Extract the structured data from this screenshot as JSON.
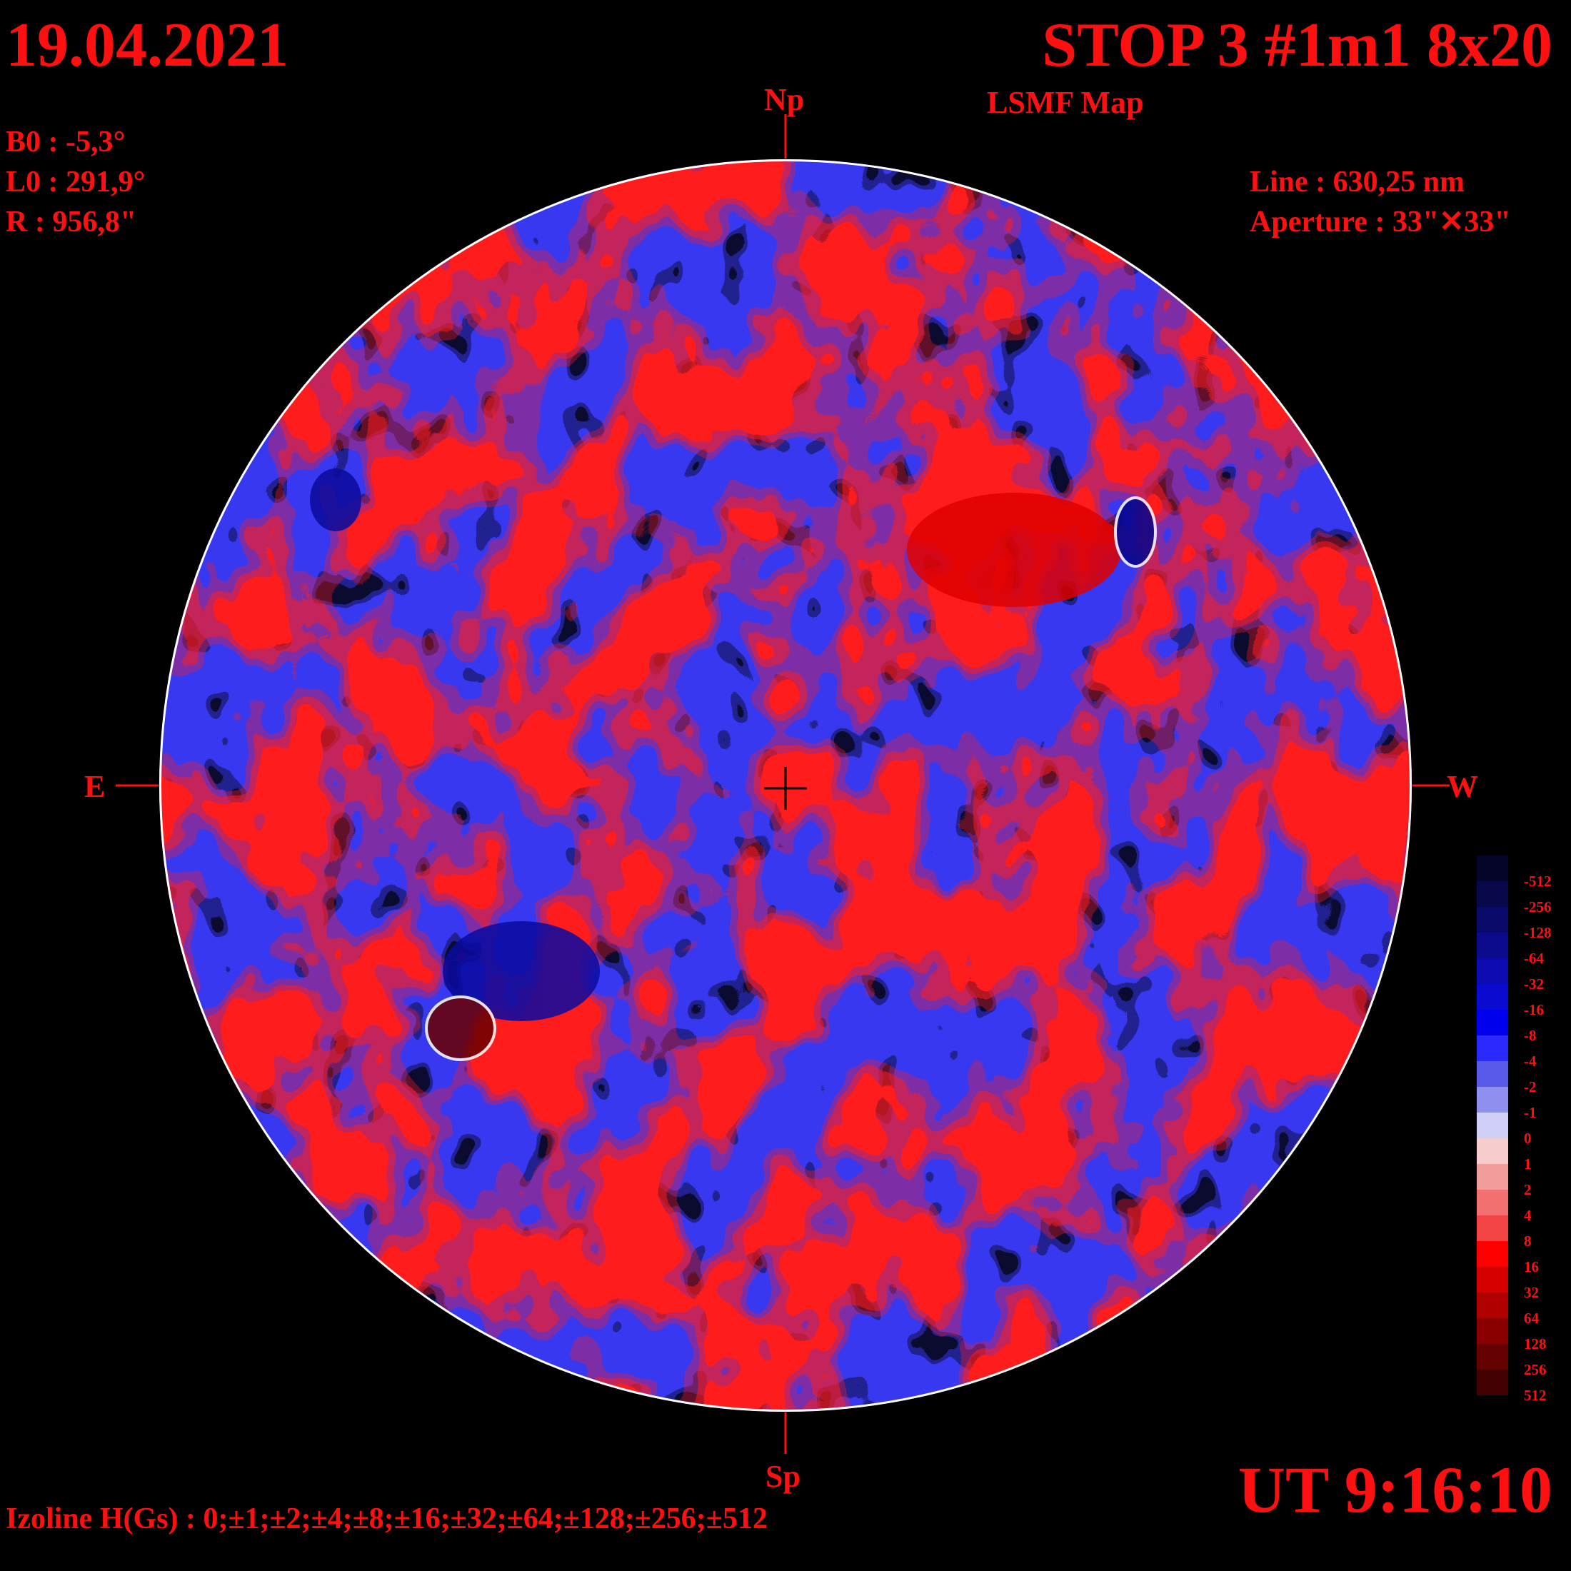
{
  "header": {
    "date": "19.04.2021",
    "title": "STOP 3 #1m1 8x20",
    "subtitle": "LSMF  Map"
  },
  "params": {
    "b0": "B0 : -5,3°",
    "l0": "L0 : 291,9°",
    "radius": "R  : 956,8\""
  },
  "instrument": {
    "line": "Line :  630,25 nm",
    "aperture": "Aperture : 33\"✕33\""
  },
  "directions": {
    "north": "Np",
    "south": "Sp",
    "east": "E",
    "west": "W"
  },
  "footer": {
    "izoline": "Izoline H(Gs) : 0;±1;±2;±4;±8;±16;±32;±64;±128;±256;±512",
    "ut": "UT 9:16:10"
  },
  "legend": {
    "labels": [
      "-512",
      "-256",
      "-128",
      "-64",
      "-32",
      "-16",
      "-8",
      "-4",
      "-2",
      "-1",
      "0",
      "1",
      "2",
      "4",
      "8",
      "16",
      "32",
      "64",
      "128",
      "256",
      "512"
    ],
    "colors": [
      "#05052a",
      "#08084a",
      "#0a0a6a",
      "#0b0b8c",
      "#0b0bb0",
      "#0a0ad0",
      "#0000ee",
      "#2a2aff",
      "#5a5ae8",
      "#8f8ff0",
      "#cfcff8",
      "#f6cccc",
      "#f29c9c",
      "#f27070",
      "#f24444",
      "#ff0000",
      "#d60000",
      "#b00000",
      "#8a0000",
      "#640000",
      "#420000"
    ]
  },
  "map_colors": {
    "background": "#000000",
    "contour": "#ffffff",
    "positive_weak": "#f6cccc",
    "positive_mid": "#f27070",
    "positive_strong": "#ff0000",
    "positive_extreme": "#6a0000",
    "negative_weak": "#cfcff8",
    "negative_mid": "#5a5ae8",
    "negative_strong": "#0000ee",
    "negative_extreme": "#05055a"
  }
}
